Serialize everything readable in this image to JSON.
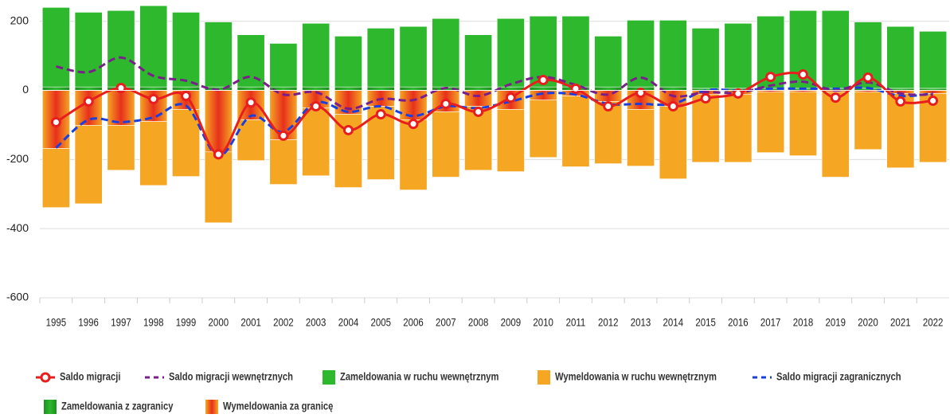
{
  "chart_data": {
    "type": "bar",
    "categories": [
      "1995",
      "1996",
      "1997",
      "1998",
      "1999",
      "2000",
      "2001",
      "2002",
      "2003",
      "2004",
      "2005",
      "2006",
      "2007",
      "2008",
      "2009",
      "2010",
      "2011",
      "2012",
      "2013",
      "2014",
      "2015",
      "2016",
      "2017",
      "2018",
      "2019",
      "2020",
      "2021",
      "2022"
    ],
    "ylim": [
      -600,
      250
    ],
    "yticks": [
      -600,
      -400,
      -200,
      0,
      200
    ],
    "grid": true,
    "series": [
      {
        "name": "Saldo migracji",
        "type": "line",
        "color": "#e81e1e",
        "values": [
          -92,
          -32,
          7,
          -25,
          -16,
          -185,
          -35,
          -131,
          -46,
          -115,
          -69,
          -97,
          -39,
          -62,
          -21,
          30,
          5,
          -46,
          -7,
          -46,
          -23,
          -9,
          39,
          46,
          -21,
          37,
          -32,
          -30
        ]
      },
      {
        "name": "Saldo migracji wewnętrznych",
        "type": "line",
        "dashed": true,
        "color": "#7a1f8a",
        "values": [
          69,
          53,
          95,
          42,
          28,
          2,
          39,
          -12,
          -5,
          -53,
          -25,
          -28,
          7,
          -16,
          18,
          39,
          16,
          -12,
          37,
          -16,
          -5,
          -7,
          14,
          25,
          0,
          23,
          -9,
          -12
        ]
      },
      {
        "name": "Zameldowania w ruchu wewnętrznym",
        "type": "bar",
        "color": "#2eb82e",
        "values": [
          230,
          216,
          221,
          235,
          216,
          188,
          151,
          126,
          184,
          147,
          170,
          175,
          198,
          151,
          198,
          205,
          205,
          147,
          193,
          193,
          174,
          188,
          209,
          225,
          225,
          192,
          179,
          165
        ]
      },
      {
        "name": "Wymeldowania w ruchu wewnętrznym",
        "type": "bar",
        "color": "#f5a623",
        "values": [
          -171,
          -227,
          -130,
          -185,
          -194,
          -205,
          -118,
          -129,
          -196,
          -212,
          -212,
          -203,
          -189,
          -185,
          -180,
          -166,
          -205,
          -180,
          -164,
          -210,
          -196,
          -196,
          -175,
          -184,
          -246,
          -166,
          -215,
          -199
        ]
      },
      {
        "name": "Saldo migracji zagranicznych",
        "type": "line",
        "dashed": true,
        "color": "#1a3fe0",
        "values": [
          -166,
          -85,
          -92,
          -78,
          -44,
          -189,
          -74,
          -120,
          -35,
          -62,
          -46,
          -74,
          -46,
          -51,
          -32,
          -9,
          -12,
          -39,
          -39,
          -39,
          0,
          0,
          5,
          5,
          5,
          7,
          -16,
          -9
        ]
      },
      {
        "name": "Zameldowania z zagranicy",
        "type": "bar",
        "gradient": true,
        "color": "#1e8f1e",
        "values": [
          10,
          10,
          10,
          10,
          10,
          10,
          10,
          10,
          10,
          10,
          10,
          10,
          10,
          10,
          10,
          10,
          10,
          10,
          10,
          10,
          6,
          6,
          6,
          6,
          6,
          6,
          6,
          6
        ]
      },
      {
        "name": "Wymeldowania za granicę",
        "type": "bar",
        "gradient": true,
        "color": "#e8301c",
        "values": [
          -168,
          -101,
          -101,
          -90,
          -55,
          -178,
          -85,
          -143,
          -51,
          -69,
          -46,
          -85,
          -62,
          -46,
          -55,
          -28,
          -16,
          -32,
          -55,
          -46,
          -12,
          -12,
          -5,
          -5,
          -5,
          -5,
          -9,
          -9
        ]
      }
    ]
  }
}
